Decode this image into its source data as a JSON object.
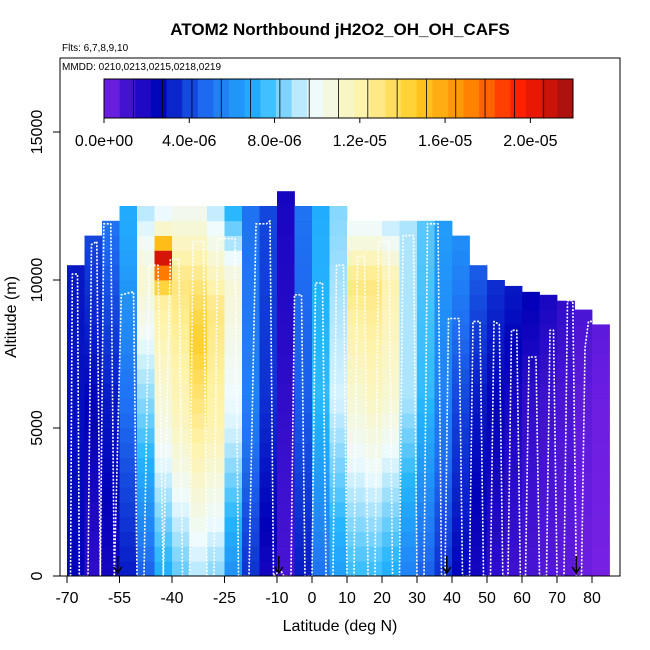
{
  "chart_data": {
    "type": "heatmap",
    "title": "ATOM2 Northbound jH2O2_OH_OH_CAFS",
    "subtitle_flights": "Flts: 6,7,8,9,10",
    "subtitle_dates": "MMDD: 0210,0213,0215,0218,0219",
    "xlabel": "Latitude (deg N)",
    "ylabel": "Altitude (m)",
    "xlim": [
      -72,
      88
    ],
    "ylim": [
      0,
      17500
    ],
    "x_ticks": [
      -70,
      -55,
      -40,
      -25,
      -10,
      0,
      10,
      20,
      30,
      40,
      50,
      60,
      70,
      80
    ],
    "x_tick_labels": [
      "-70",
      "-55",
      "-40",
      "-25",
      "-10",
      "0",
      "10",
      "20",
      "30",
      "40",
      "50",
      "60",
      "70",
      "80"
    ],
    "y_ticks": [
      0,
      5000,
      10000,
      15000
    ],
    "y_tick_labels": [
      "0",
      "5000",
      "10000",
      "15000"
    ],
    "colorbar": {
      "min": 0.0,
      "max": 2.2e-05,
      "ticks": [
        0.0,
        4e-06,
        8e-06,
        1.2e-05,
        1.6e-05,
        2e-05
      ],
      "tick_labels": [
        "0.0e+00",
        "4.0e-06",
        "8.0e-06",
        "1.2e-05",
        "1.6e-05",
        "2.0e-05"
      ],
      "colors": [
        "#7b22e6",
        "#0000b8",
        "#1f6ff2",
        "#23b5ff",
        "#eefbff",
        "#fff3a8",
        "#ffcc22",
        "#ff8800",
        "#ff1a00",
        "#a01010"
      ]
    },
    "columns": [
      {
        "lat": -67.5,
        "top": 10500,
        "profile": [
          [
            0,
            2.5e-06
          ],
          [
            11000,
            3e-06
          ]
        ]
      },
      {
        "lat": -62.5,
        "top": 11500,
        "profile": [
          [
            0,
            1.5e-06
          ],
          [
            6000,
            2.5e-06
          ],
          [
            11500,
            4e-06
          ]
        ]
      },
      {
        "lat": -57.5,
        "top": 12000,
        "profile": [
          [
            0,
            2e-06
          ],
          [
            6000,
            3e-06
          ],
          [
            12000,
            5e-06
          ]
        ]
      },
      {
        "lat": -52.5,
        "top": 12500,
        "profile": [
          [
            0,
            3e-06
          ],
          [
            6000,
            5e-06
          ],
          [
            12000,
            7e-06
          ]
        ]
      },
      {
        "lat": -47.5,
        "top": 12500,
        "profile": [
          [
            0,
            4.5e-06
          ],
          [
            5000,
            8e-06
          ],
          [
            10000,
            1.1e-05
          ],
          [
            12500,
            9e-06
          ]
        ]
      },
      {
        "lat": -42.5,
        "top": 12500,
        "profile": [
          [
            0,
            7e-06
          ],
          [
            5000,
            1.05e-05
          ],
          [
            9500,
            1.25e-05
          ],
          [
            10800,
            2.1e-05
          ],
          [
            11500,
            1.2e-05
          ],
          [
            12500,
            9e-06
          ]
        ]
      },
      {
        "lat": -37.5,
        "top": 12500,
        "profile": [
          [
            0,
            8e-06
          ],
          [
            5000,
            1.15e-05
          ],
          [
            10000,
            1.3e-05
          ],
          [
            12500,
            1e-05
          ]
        ]
      },
      {
        "lat": -32.5,
        "top": 12500,
        "profile": [
          [
            0,
            9e-06
          ],
          [
            5000,
            1.25e-05
          ],
          [
            8000,
            1.45e-05
          ],
          [
            10000,
            1.3e-05
          ],
          [
            12500,
            1e-05
          ]
        ]
      },
      {
        "lat": -27.5,
        "top": 12500,
        "profile": [
          [
            0,
            8.5e-06
          ],
          [
            5000,
            1.2e-05
          ],
          [
            9000,
            1.3e-05
          ],
          [
            12500,
            9e-06
          ]
        ]
      },
      {
        "lat": -22.5,
        "top": 12500,
        "profile": [
          [
            0,
            6e-06
          ],
          [
            5000,
            9.5e-06
          ],
          [
            10000,
            1.1e-05
          ],
          [
            12500,
            7e-06
          ]
        ]
      },
      {
        "lat": -17.5,
        "top": 12500,
        "profile": [
          [
            0,
            3.5e-06
          ],
          [
            6000,
            5.5e-06
          ],
          [
            12500,
            5e-06
          ]
        ]
      },
      {
        "lat": -12.5,
        "top": 12500,
        "profile": [
          [
            0,
            2e-06
          ],
          [
            6000,
            3.5e-06
          ],
          [
            12500,
            4e-06
          ]
        ]
      },
      {
        "lat": -7.5,
        "top": 13000,
        "profile": [
          [
            0,
            1e-06
          ],
          [
            6000,
            1.5e-06
          ],
          [
            13000,
            2e-06
          ]
        ]
      },
      {
        "lat": -2.5,
        "top": 12500,
        "profile": [
          [
            0,
            3e-06
          ],
          [
            6000,
            4.5e-06
          ],
          [
            12500,
            5e-06
          ]
        ]
      },
      {
        "lat": 2.5,
        "top": 12500,
        "profile": [
          [
            0,
            5e-06
          ],
          [
            6000,
            7.5e-06
          ],
          [
            12500,
            7e-06
          ]
        ]
      },
      {
        "lat": 7.5,
        "top": 12500,
        "profile": [
          [
            0,
            6.5e-06
          ],
          [
            6000,
            9.5e-06
          ],
          [
            12500,
            8.5e-06
          ]
        ]
      },
      {
        "lat": 12.5,
        "top": 12000,
        "profile": [
          [
            0,
            7.5e-06
          ],
          [
            6000,
            1.1e-05
          ],
          [
            10000,
            1.3e-05
          ],
          [
            12000,
            9.5e-06
          ]
        ]
      },
      {
        "lat": 17.5,
        "top": 12000,
        "profile": [
          [
            0,
            7.5e-06
          ],
          [
            6000,
            1.15e-05
          ],
          [
            10000,
            1.3e-05
          ],
          [
            12000,
            9.5e-06
          ]
        ]
      },
      {
        "lat": 22.5,
        "top": 12000,
        "profile": [
          [
            0,
            7e-06
          ],
          [
            6000,
            1.1e-05
          ],
          [
            10000,
            1.2e-05
          ],
          [
            12000,
            9e-06
          ]
        ]
      },
      {
        "lat": 27.5,
        "top": 12000,
        "profile": [
          [
            0,
            5.5e-06
          ],
          [
            6000,
            9e-06
          ],
          [
            12000,
            9e-06
          ]
        ]
      },
      {
        "lat": 32.5,
        "top": 12000,
        "profile": [
          [
            0,
            4.5e-06
          ],
          [
            6000,
            7.5e-06
          ],
          [
            12000,
            8e-06
          ]
        ]
      },
      {
        "lat": 37.5,
        "top": 12000,
        "profile": [
          [
            0,
            3.5e-06
          ],
          [
            6000,
            5.5e-06
          ],
          [
            12000,
            6.5e-06
          ]
        ]
      },
      {
        "lat": 42.5,
        "top": 11500,
        "profile": [
          [
            0,
            2.5e-06
          ],
          [
            6000,
            4e-06
          ],
          [
            11500,
            6e-06
          ]
        ]
      },
      {
        "lat": 47.5,
        "top": 10500,
        "profile": [
          [
            0,
            2e-06
          ],
          [
            6000,
            3e-06
          ],
          [
            10500,
            4.5e-06
          ]
        ]
      },
      {
        "lat": 52.5,
        "top": 10000,
        "profile": [
          [
            0,
            1.5e-06
          ],
          [
            6000,
            2.5e-06
          ],
          [
            10000,
            3.5e-06
          ]
        ]
      },
      {
        "lat": 57.5,
        "top": 9800,
        "profile": [
          [
            0,
            1.2e-06
          ],
          [
            6000,
            2e-06
          ],
          [
            9800,
            3e-06
          ]
        ]
      },
      {
        "lat": 62.5,
        "top": 9600,
        "profile": [
          [
            0,
            1e-06
          ],
          [
            6000,
            1.5e-06
          ],
          [
            9600,
            2.5e-06
          ]
        ]
      },
      {
        "lat": 67.5,
        "top": 9500,
        "profile": [
          [
            0,
            8e-07
          ],
          [
            6000,
            1.2e-06
          ],
          [
            9500,
            2e-06
          ]
        ]
      },
      {
        "lat": 72.5,
        "top": 9300,
        "profile": [
          [
            0,
            6e-07
          ],
          [
            6000,
            1e-06
          ],
          [
            9300,
            1.5e-06
          ]
        ]
      },
      {
        "lat": 77.5,
        "top": 9000,
        "profile": [
          [
            0,
            3e-07
          ],
          [
            6000,
            6e-07
          ],
          [
            9000,
            1e-06
          ]
        ]
      },
      {
        "lat": 82.5,
        "top": 8500,
        "profile": [
          [
            0,
            1e-07
          ],
          [
            6000,
            3e-07
          ],
          [
            8500,
            6e-07
          ]
        ]
      }
    ],
    "flight_track": [
      [
        -69,
        0
      ],
      [
        -68.5,
        10200
      ],
      [
        -67,
        10200
      ],
      [
        -66.5,
        0
      ],
      [
        -64,
        0
      ],
      [
        -63,
        11200
      ],
      [
        -61.5,
        11300
      ],
      [
        -60.5,
        0
      ],
      [
        -59.5,
        11900
      ],
      [
        -57.5,
        11900
      ],
      [
        -56.5,
        0
      ],
      [
        -54.5,
        9500
      ],
      [
        -51,
        9600
      ],
      [
        -50,
        0
      ],
      [
        -48,
        0
      ],
      [
        -46.5,
        10500
      ],
      [
        -44,
        10500
      ],
      [
        -42.5,
        0
      ],
      [
        -40.5,
        10700
      ],
      [
        -38,
        10700
      ],
      [
        -37,
        0
      ],
      [
        -35,
        0
      ],
      [
        -34,
        11300
      ],
      [
        -31,
        11300
      ],
      [
        -30,
        0
      ],
      [
        -28,
        0
      ],
      [
        -27,
        11400
      ],
      [
        -22,
        11400
      ],
      [
        -21,
        0
      ],
      [
        -18,
        0
      ],
      [
        -16,
        11900
      ],
      [
        -13,
        11900
      ],
      [
        -12,
        12000
      ],
      [
        -11,
        0
      ],
      [
        -9,
        200
      ],
      [
        -8,
        0
      ],
      [
        -6,
        0
      ],
      [
        -5,
        9500
      ],
      [
        -3,
        9500
      ],
      [
        -2,
        0
      ],
      [
        0,
        0
      ],
      [
        1,
        9900
      ],
      [
        3,
        9900
      ],
      [
        4,
        0
      ],
      [
        6,
        0
      ],
      [
        7,
        10500
      ],
      [
        9,
        10500
      ],
      [
        10,
        0
      ],
      [
        12,
        0
      ],
      [
        13,
        10800
      ],
      [
        15,
        10800
      ],
      [
        16,
        0
      ],
      [
        18,
        0
      ],
      [
        19,
        11300
      ],
      [
        22,
        11300
      ],
      [
        23,
        0
      ],
      [
        25,
        0
      ],
      [
        26,
        11500
      ],
      [
        29,
        11500
      ],
      [
        30,
        0
      ],
      [
        32,
        0
      ],
      [
        33,
        11900
      ],
      [
        36,
        11900
      ],
      [
        37,
        0
      ],
      [
        38,
        0
      ],
      [
        39,
        8700
      ],
      [
        42,
        8700
      ],
      [
        43,
        0
      ],
      [
        45,
        0
      ],
      [
        46,
        8600
      ],
      [
        48,
        8600
      ],
      [
        49,
        0
      ],
      [
        51,
        0
      ],
      [
        52,
        8600
      ],
      [
        53.5,
        8500
      ],
      [
        54.5,
        0
      ],
      [
        56,
        0
      ],
      [
        57,
        8300
      ],
      [
        58.5,
        8300
      ],
      [
        59.5,
        0
      ],
      [
        61,
        0
      ],
      [
        62,
        7400
      ],
      [
        64,
        7400
      ],
      [
        65,
        0
      ],
      [
        67,
        0
      ],
      [
        68,
        8300
      ],
      [
        69,
        8300
      ],
      [
        70,
        0
      ],
      [
        72,
        0
      ],
      [
        73,
        9300
      ],
      [
        74.5,
        9300
      ],
      [
        75.5,
        0
      ],
      [
        77,
        0
      ],
      [
        78,
        7700
      ],
      [
        79,
        8600
      ],
      [
        80,
        8600
      ]
    ],
    "arrows_at_lat": [
      -55.5,
      -9.5,
      38.5,
      75.5
    ]
  }
}
